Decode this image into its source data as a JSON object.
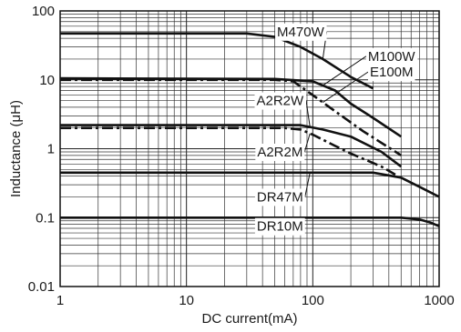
{
  "chart_data": {
    "type": "line",
    "x_scale": "log",
    "y_scale": "log",
    "xlim": [
      1,
      1000
    ],
    "ylim": [
      0.01,
      100
    ],
    "grid": true,
    "xlabel": "DC current(mA)",
    "ylabel": "Inductance (μH)",
    "x_ticks": [
      "1",
      "10",
      "100",
      "1000"
    ],
    "y_ticks": [
      "0.01",
      "0.1",
      "1",
      "10",
      "100"
    ],
    "series": [
      {
        "name": "M470W",
        "style": "solid",
        "points": [
          [
            1,
            47
          ],
          [
            30,
            47
          ],
          [
            50,
            42
          ],
          [
            80,
            30
          ],
          [
            120,
            20
          ],
          [
            200,
            11
          ],
          [
            300,
            7.5
          ]
        ]
      },
      {
        "name": "M100W",
        "style": "solid",
        "points": [
          [
            1,
            10.5
          ],
          [
            50,
            10.3
          ],
          [
            100,
            9.5
          ],
          [
            150,
            7
          ],
          [
            200,
            4.5
          ],
          [
            300,
            2.8
          ],
          [
            500,
            1.5
          ]
        ]
      },
      {
        "name": "E100M",
        "style": "dashdot",
        "points": [
          [
            1,
            10
          ],
          [
            50,
            10
          ],
          [
            70,
            9.5
          ],
          [
            100,
            6
          ],
          [
            150,
            3.5
          ],
          [
            250,
            1.8
          ],
          [
            500,
            0.8
          ]
        ]
      },
      {
        "name": "A2R2W",
        "style": "solid",
        "points": [
          [
            1,
            2.2
          ],
          [
            80,
            2.2
          ],
          [
            120,
            1.9
          ],
          [
            200,
            1.5
          ],
          [
            350,
            0.9
          ],
          [
            500,
            0.55
          ]
        ]
      },
      {
        "name": "A2R2M",
        "style": "dashdot",
        "points": [
          [
            1,
            2
          ],
          [
            60,
            2
          ],
          [
            80,
            1.9
          ],
          [
            100,
            1.6
          ],
          [
            150,
            1.1
          ],
          [
            200,
            0.85
          ],
          [
            350,
            0.55
          ],
          [
            450,
            0.42
          ]
        ]
      },
      {
        "name": "DR47M",
        "style": "solid",
        "points": [
          [
            1,
            0.45
          ],
          [
            300,
            0.45
          ],
          [
            500,
            0.38
          ],
          [
            700,
            0.28
          ],
          [
            1000,
            0.2
          ]
        ]
      },
      {
        "name": "DR10M",
        "style": "solid",
        "points": [
          [
            1,
            0.1
          ],
          [
            500,
            0.1
          ],
          [
            700,
            0.094
          ],
          [
            850,
            0.085
          ],
          [
            1000,
            0.075
          ]
        ]
      }
    ],
    "labels": [
      {
        "text": "M470W",
        "series": "M470W",
        "x": 80,
        "y": 50
      },
      {
        "text": "M100W",
        "series": "M100W",
        "x": 420,
        "y": 22
      },
      {
        "text": "E100M",
        "series": "E100M",
        "x": 420,
        "y": 13
      },
      {
        "text": "A2R2W",
        "series": "A2R2W",
        "x": 55,
        "y": 5
      },
      {
        "text": "A2R2M",
        "series": "A2R2M",
        "x": 55,
        "y": 0.9
      },
      {
        "text": "DR47M",
        "series": "DR47M",
        "x": 55,
        "y": 0.2
      },
      {
        "text": "DR10M",
        "series": "DR10M",
        "x": 55,
        "y": 0.075
      }
    ]
  }
}
